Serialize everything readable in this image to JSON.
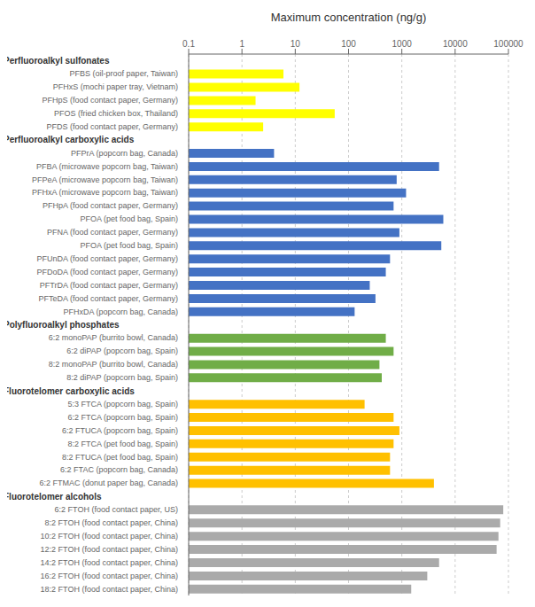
{
  "chart_data": {
    "type": "bar",
    "orientation": "horizontal",
    "log": "x",
    "grid": true,
    "x_label": "Maximum concentration (ng/g)",
    "categories": [
      "Perfluoroalkyl sulfonates",
      "PFBS (oil-proof paper, Taiwan)",
      "PFHxS (mochi paper tray, Vietnam)",
      "PFHpS (food contact paper, Germany)",
      "PFOS (fried chicken box, Thailand)",
      "PFDS (food contact paper, Germany)",
      "Perfluoroalkyl carboxylic acids",
      "PFPrA (popcorn bag, Canada)",
      "PFBA (microwave popcorn bag, Taiwan)",
      "PFPeA (microwave popcorn bag, Taiwan)",
      "PFHxA (microwave popcorn bag, Taiwan)",
      "PFHpA (food contact paper, Germany)",
      "PFOA (pet food bag, Spain)",
      "PFNA (food contact paper, Germany)",
      "PFOA (pet food bag, Spain)",
      "PFUnDA (food contact paper, Germany)",
      "PFDoDA (food contact paper, Germany)",
      "PFTrDA (food contact paper, Germany)",
      "PFTeDA (food contact paper, Germany)",
      "PFHxDA (popcorn bag, Canada)",
      "Polyfluoroalkyl phosphates",
      "6:2 monoPAP (burrito bowl, Canada)",
      "6:2 diPAP (popcorn bag, Spain)",
      "8:2 monoPAP (burrito bowl, Canada)",
      "8:2 diPAP (popcorn bag, Spain)",
      "Fluorotelomer carboxylic acids",
      "5:3 FTCA (popcorn bag, Spain)",
      "6:2 FTCA (popcorn bag, Spain)",
      "6:2 FTUCA (popcorn bag, Spain)",
      "8:2 FTCA (pet food bag, Spain)",
      "8:2 FTUCA (pet food bag, Spain)",
      "6:2 FTAC (popcorn bag, Canada)",
      "6:2 FTMAC (donut paper bag, Canada)",
      "Fluorotelomer alcohols",
      "6:2 FTOH (food contact paper, US)",
      "8:2 FTOH (food contact paper, China)",
      "10:2 FTOH (food contact paper, China)",
      "12:2 FTOH (food contact paper, China)",
      "14:2 FTOH (food contact paper, China)",
      "16:2 FTOH (food contact paper, China)",
      "18:2 FTOH (food contact paper, China)"
    ],
    "values": [
      null,
      6,
      12,
      1.8,
      55,
      2.5,
      null,
      4,
      5000,
      800,
      1200,
      700,
      6000,
      900,
      5500,
      600,
      500,
      250,
      320,
      130,
      null,
      500,
      700,
      380,
      420,
      null,
      200,
      700,
      900,
      700,
      600,
      600,
      4000,
      null,
      80000,
      70000,
      65000,
      60000,
      5000,
      3000,
      1500
    ],
    "colors": [
      null,
      "#FFFF00",
      "#FFFF00",
      "#FFFF00",
      "#FFFF00",
      "#FFFF00",
      null,
      "#4472C4",
      "#4472C4",
      "#4472C4",
      "#4472C4",
      "#4472C4",
      "#4472C4",
      "#4472C4",
      "#4472C4",
      "#4472C4",
      "#4472C4",
      "#4472C4",
      "#4472C4",
      "#4472C4",
      null,
      "#70AD47",
      "#70AD47",
      "#70AD47",
      "#70AD47",
      null,
      "#FFC000",
      "#FFC000",
      "#FFC000",
      "#FFC000",
      "#FFC000",
      "#FFC000",
      "#FFC000",
      null,
      "#AAAAAA",
      "#AAAAAA",
      "#AAAAAA",
      "#AAAAAA",
      "#AAAAAA",
      "#AAAAAA",
      "#AAAAAA"
    ],
    "xlim": [
      0.1,
      100000
    ],
    "xticks": [
      0.1,
      1,
      10,
      100,
      1000,
      10000,
      100000
    ]
  }
}
